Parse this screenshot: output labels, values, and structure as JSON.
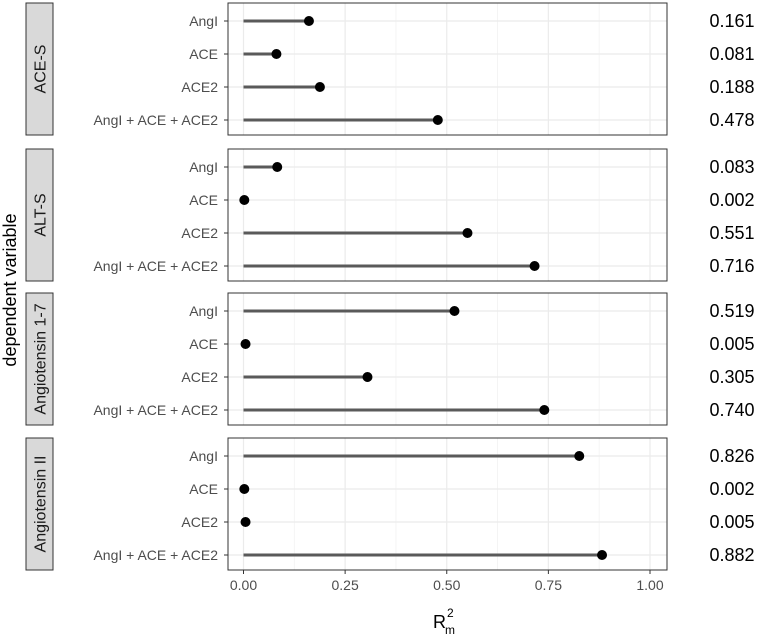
{
  "chart_data": {
    "type": "lollipop",
    "ylabel": "dependent variable",
    "xlabel_main": "R",
    "xlabel_sub": "m",
    "xlabel_sup": "2",
    "xlim": [
      0,
      1
    ],
    "xticks": [
      "0.00",
      "0.25",
      "0.50",
      "0.75",
      "1.00"
    ],
    "xtick_values": [
      0,
      0.25,
      0.5,
      0.75,
      1.0
    ],
    "grid": true,
    "categories": [
      "AngI",
      "ACE",
      "ACE2",
      "AngI + ACE + ACE2"
    ],
    "panels": [
      {
        "name": "ACE-S",
        "values": [
          0.161,
          0.081,
          0.188,
          0.478
        ],
        "labels": [
          "0.161",
          "0.081",
          "0.188",
          "0.478"
        ]
      },
      {
        "name": "ALT-S",
        "values": [
          0.083,
          0.002,
          0.551,
          0.716
        ],
        "labels": [
          "0.083",
          "0.002",
          "0.551",
          "0.716"
        ]
      },
      {
        "name": "Angiotensin 1-7",
        "values": [
          0.519,
          0.005,
          0.305,
          0.74
        ],
        "labels": [
          "0.519",
          "0.005",
          "0.305",
          "0.740"
        ]
      },
      {
        "name": "Angiotensin II",
        "values": [
          0.826,
          0.002,
          0.005,
          0.882
        ],
        "labels": [
          "0.826",
          "0.002",
          "0.005",
          "0.882"
        ]
      }
    ]
  }
}
